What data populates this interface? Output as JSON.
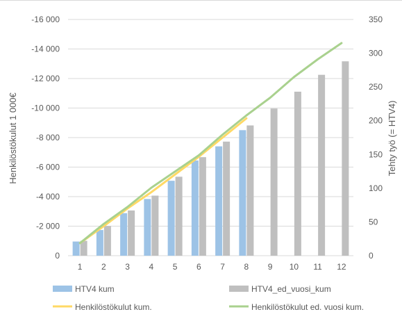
{
  "chart_data": {
    "type": "bar",
    "categories": [
      "1",
      "2",
      "3",
      "4",
      "5",
      "6",
      "7",
      "8",
      "9",
      "10",
      "11",
      "12"
    ],
    "ylabel_left": "Henkilöstökulut 1 000€",
    "ylabel_right": "Tehty työ (= HTV4)",
    "left_axis": {
      "ticks": [
        0,
        -2000,
        -4000,
        -6000,
        -8000,
        -10000,
        -12000,
        -14000,
        -16000
      ],
      "tick_labels": [
        "0",
        "-2 000",
        "-4 000",
        "-6 000",
        "-8 000",
        "-10 000",
        "-12 000",
        "-14 000",
        "-16 000"
      ],
      "ylim": [
        0,
        -16000
      ]
    },
    "right_axis": {
      "ticks": [
        0,
        50,
        100,
        150,
        200,
        250,
        300,
        350
      ],
      "tick_labels": [
        "0",
        "50",
        "100",
        "150",
        "200",
        "250",
        "300",
        "350"
      ],
      "ylim": [
        0,
        350
      ]
    },
    "grid": true,
    "legend_position": "bottom",
    "series": [
      {
        "name": "HTV4 kum",
        "type": "bar",
        "axis": "right",
        "color": "#9DC3E6",
        "values": [
          21,
          38,
          63,
          84,
          111,
          141,
          162,
          186,
          null,
          null,
          null,
          null
        ]
      },
      {
        "name": "HTV4_ed_vuosi_kum",
        "type": "bar",
        "axis": "right",
        "color": "#BFBFBF",
        "values": [
          22,
          44,
          67,
          89,
          117,
          146,
          169,
          193,
          218,
          243,
          268,
          288
        ]
      },
      {
        "name": "Henkilöstökulut kum.",
        "type": "line",
        "axis": "left",
        "color": "#FFD966",
        "values": [
          -850,
          -2000,
          -3200,
          -4300,
          -5500,
          -6700,
          -8000,
          -9300,
          null,
          null,
          null,
          null
        ]
      },
      {
        "name": "Henkilöstökulut ed. vuosi kum.",
        "type": "line",
        "axis": "left",
        "color": "#A9D18E",
        "values": [
          -850,
          -2150,
          -3300,
          -4600,
          -5700,
          -6800,
          -8200,
          -9500,
          -10700,
          -12100,
          -13300,
          -14400
        ]
      }
    ]
  }
}
